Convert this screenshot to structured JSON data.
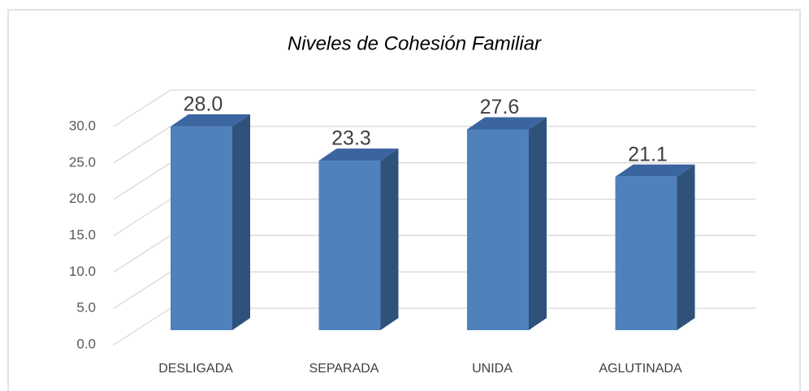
{
  "chart_data": {
    "type": "bar3d",
    "title": "Niveles de Cohesión Familiar",
    "categories": [
      "DESLIGADA",
      "SEPARADA",
      "UNIDA",
      "AGLUTINADA"
    ],
    "values": [
      28.0,
      23.3,
      27.6,
      21.1
    ],
    "value_labels": [
      "28.0",
      "23.3",
      "27.6",
      "21.1"
    ],
    "color": "#4f81bd",
    "ylim": [
      0,
      30
    ],
    "yticks": [
      {
        "value": 0,
        "label": "0.0"
      },
      {
        "value": 5,
        "label": "5.0"
      },
      {
        "value": 10,
        "label": "10.0"
      },
      {
        "value": 15,
        "label": "15.0"
      },
      {
        "value": 20,
        "label": "20.0"
      },
      {
        "value": 25,
        "label": "25.0"
      },
      {
        "value": 30,
        "label": "30.0"
      }
    ],
    "grid": true
  }
}
